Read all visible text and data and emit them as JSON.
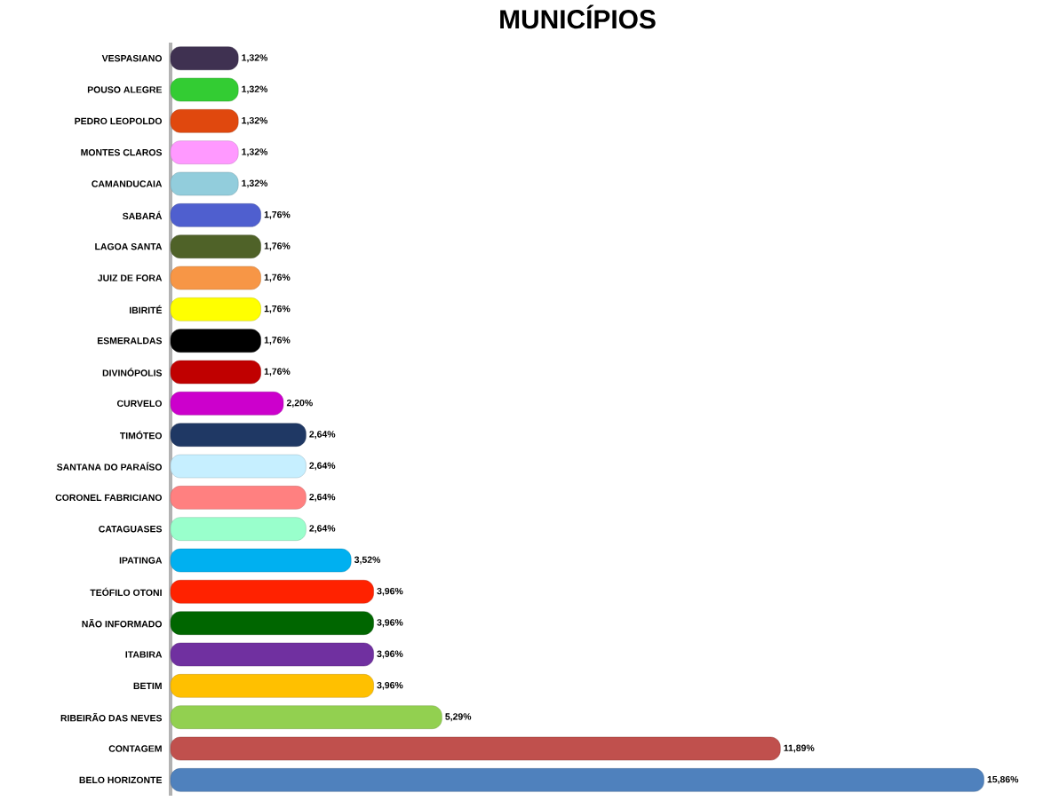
{
  "chart_data": {
    "type": "bar",
    "orientation": "horizontal",
    "title": "MUNICÍPIOS",
    "categories": [
      "VESPASIANO",
      "POUSO ALEGRE",
      "PEDRO LEOPOLDO",
      "MONTES CLAROS",
      "CAMANDUCAIA",
      "SABARÁ",
      "LAGOA SANTA",
      "JUIZ DE FORA",
      "IBIRITÉ",
      "ESMERALDAS",
      "DIVINÓPOLIS",
      "CURVELO",
      "TIMÓTEO",
      "SANTANA DO PARAÍSO",
      "CORONEL FABRICIANO",
      "CATAGUASES",
      "IPATINGA",
      "TEÓFILO OTONI",
      "NÃO INFORMADO",
      "ITABIRA",
      "BETIM",
      "RIBEIRÃO DAS NEVES",
      "CONTAGEM",
      "BELO HORIZONTE"
    ],
    "values": [
      1.32,
      1.32,
      1.32,
      1.32,
      1.32,
      1.76,
      1.76,
      1.76,
      1.76,
      1.76,
      1.76,
      2.2,
      2.64,
      2.64,
      2.64,
      2.64,
      3.52,
      3.96,
      3.96,
      3.96,
      3.96,
      5.29,
      11.89,
      15.86
    ],
    "value_labels": [
      "1,32%",
      "1,32%",
      "1,32%",
      "1,32%",
      "1,32%",
      "1,76%",
      "1,76%",
      "1,76%",
      "1,76%",
      "1,76%",
      "1,76%",
      "2,20%",
      "2,64%",
      "2,64%",
      "2,64%",
      "2,64%",
      "3,52%",
      "3,96%",
      "3,96%",
      "3,96%",
      "3,96%",
      "5,29%",
      "11,89%",
      "15,86%"
    ],
    "colors": [
      "#3f3151",
      "#33cc33",
      "#e0480e",
      "#ff99ff",
      "#92cddc",
      "#4f5fcf",
      "#4f6228",
      "#f79646",
      "#ffff00",
      "#000000",
      "#c00000",
      "#cc00cc",
      "#1f3864",
      "#c6efff",
      "#ff8080",
      "#99ffcc",
      "#00b0f0",
      "#ff2200",
      "#006600",
      "#7030a0",
      "#ffc000",
      "#92d050",
      "#c0504d",
      "#4f81bd"
    ]
  }
}
